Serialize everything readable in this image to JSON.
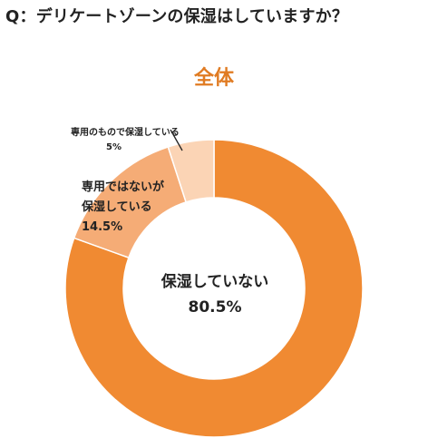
{
  "question": "Q：デリケートゾーンの保湿はしていますか？",
  "chart_data": {
    "type": "pie",
    "variant": "donut",
    "title": "全体",
    "start_angle_deg": 0,
    "direction": "clockwise",
    "slices": [
      {
        "label": "保湿していない",
        "value": 80.5,
        "value_label": "80.5%",
        "color": "#F08A32"
      },
      {
        "label_line1": "専用ではないが",
        "label_line2": "保湿している",
        "value": 14.5,
        "value_label": "14.5%",
        "color": "#F5AC76"
      },
      {
        "label": "専用のもので保湿している",
        "value": 5,
        "value_label": "5%",
        "color": "#FBD4B5"
      }
    ],
    "colors": {
      "title": "#E07B22",
      "border": "#ffffff"
    }
  }
}
